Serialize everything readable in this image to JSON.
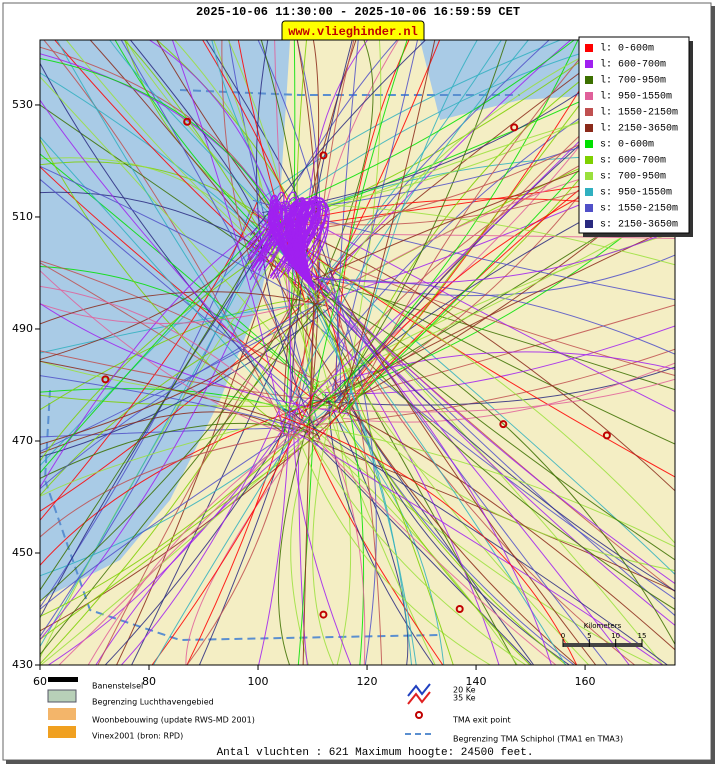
{
  "header": {
    "title": "2025-10-06 11:30:00 - 2025-10-06 16:59:59 CET",
    "badge": "www.vlieghinder.nl"
  },
  "map": {
    "xlim": [
      60,
      176.5
    ],
    "ylim": [
      430,
      541.6
    ],
    "xticks": [
      60,
      80,
      100,
      120,
      140,
      160
    ],
    "yticks": [
      430,
      450,
      470,
      490,
      510,
      530
    ],
    "exit_points": {
      "x": [
        87,
        112,
        147,
        72,
        145,
        164,
        137,
        112
      ],
      "y": [
        527,
        521,
        526,
        481,
        473,
        471,
        440,
        439
      ]
    },
    "scale": {
      "title": "Kilometers",
      "ticks": [
        0,
        5,
        10,
        15
      ]
    }
  },
  "legend": [
    {
      "label": "l: 0-600m",
      "color": "#ff0000"
    },
    {
      "label": "l: 600-700m",
      "color": "#a020f0"
    },
    {
      "label": "l: 700-950m",
      "color": "#3c7000"
    },
    {
      "label": "l: 950-1550m",
      "color": "#e0609a"
    },
    {
      "label": "l: 1550-2150m",
      "color": "#c05050"
    },
    {
      "label": "l: 2150-3650m",
      "color": "#8b2a1a"
    },
    {
      "label": "s: 0-600m",
      "color": "#00e000"
    },
    {
      "label": "s: 600-700m",
      "color": "#7ed000"
    },
    {
      "label": "s: 700-950m",
      "color": "#9ae03c"
    },
    {
      "label": "s: 950-1550m",
      "color": "#30b0c0"
    },
    {
      "label": "s: 1550-2150m",
      "color": "#5050c8"
    },
    {
      "label": "s: 2150-3650m",
      "color": "#2a2a80"
    }
  ],
  "key": {
    "items": [
      "Banenstelsel",
      "Begrenzing Luchthavengebied",
      "Woonbebouwing (update RWS-MD 2001)",
      "Vinex2001 (bron: RPD)"
    ],
    "noise": [
      "20 Ke",
      "35 Ke"
    ],
    "exit": "TMA exit point",
    "tma": "Begrenzing TMA Schiphol  (TMA1 en TMA3)"
  },
  "footer": "Antal vluchten : 621 Maximum hoogte: 24500 feet."
}
